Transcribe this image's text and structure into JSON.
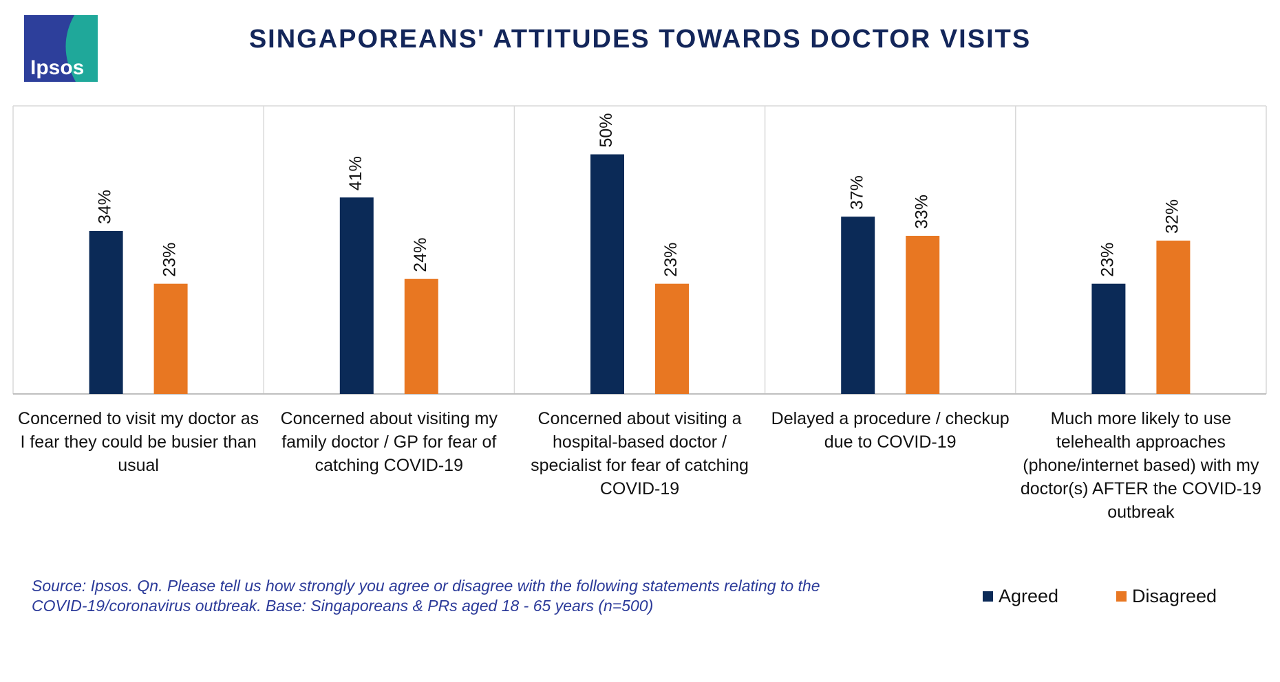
{
  "logo": "Ipsos",
  "chart_data": {
    "type": "bar",
    "title": "SINGAPOREANS' ATTITUDES TOWARDS DOCTOR VISITS",
    "categories": [
      "Concerned to visit my doctor as I fear they could be busier than usual",
      "Concerned about visiting my family doctor / GP for fear of catching COVID-19",
      "Concerned about visiting a hospital-based doctor / specialist for fear of catching COVID-19",
      "Delayed a procedure / checkup due to COVID-19",
      "Much more likely to use telehealth approaches (phone/internet based) with my doctor(s) AFTER the COVID-19 outbreak"
    ],
    "series": [
      {
        "name": "Agreed",
        "color": "#0b2a57",
        "values": [
          34,
          41,
          50,
          37,
          23
        ],
        "value_labels": [
          "34%",
          "41%",
          "50%",
          "37%",
          "23%"
        ]
      },
      {
        "name": "Disagreed",
        "color": "#e87722",
        "values": [
          23,
          24,
          23,
          33,
          32
        ],
        "value_labels": [
          "23%",
          "24%",
          "23%",
          "33%",
          "32%"
        ]
      }
    ],
    "legend": "bottom-right"
  },
  "source": "Source: Ipsos. Qn. Please tell us how strongly you agree or disagree with the following statements relating to the COVID-19/coronavirus outbreak. Base: Singaporeans & PRs aged 18 - 65 years (n=500)"
}
